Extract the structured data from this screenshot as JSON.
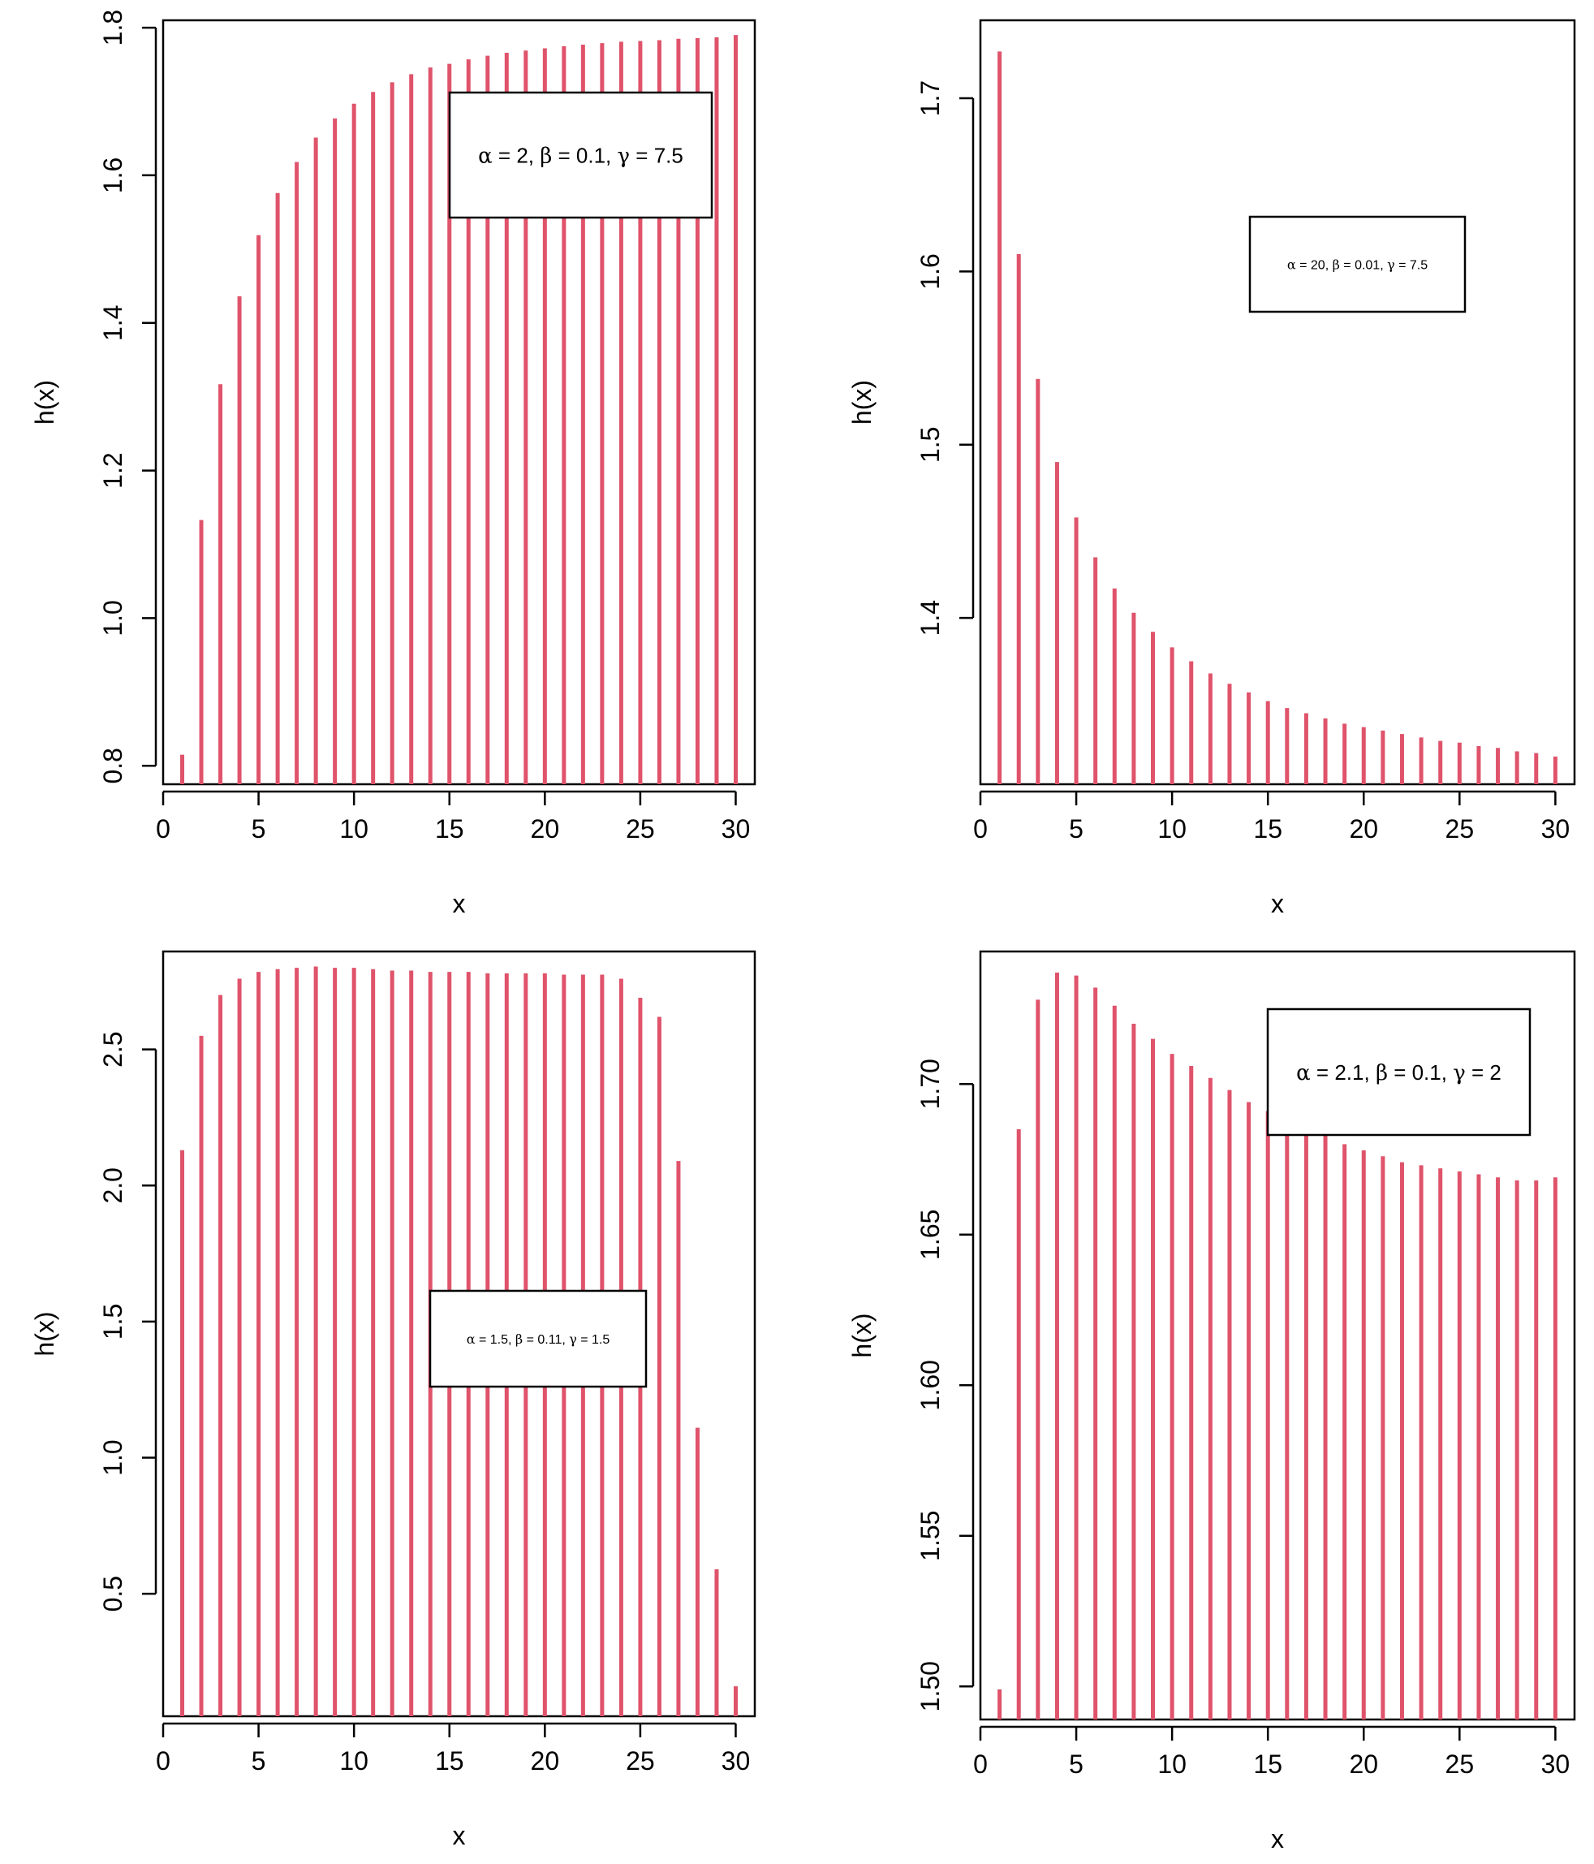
{
  "chart_data": [
    {
      "type": "bar",
      "xlabel": "x",
      "ylabel": "h(x)",
      "xlim": [
        0,
        31
      ],
      "ylim": [
        0.775,
        1.81
      ],
      "xticks": [
        0,
        5,
        10,
        15,
        20,
        25,
        30
      ],
      "yticks": [
        0.8,
        1.0,
        1.2,
        1.4,
        1.6,
        1.8
      ],
      "ytick_labels": [
        "0.8",
        "1.0",
        "1.2",
        "1.4",
        "1.6",
        "1.8"
      ],
      "legend": "α = 2, β = 0.1, γ = 7.5",
      "legend_position": "top-right",
      "color": "#df536b",
      "x": [
        1,
        2,
        3,
        4,
        5,
        6,
        7,
        8,
        9,
        10,
        11,
        12,
        13,
        14,
        15,
        16,
        17,
        18,
        19,
        20,
        21,
        22,
        23,
        24,
        25,
        26,
        27,
        28,
        29,
        30
      ],
      "values": [
        0.815,
        1.133,
        1.317,
        1.436,
        1.519,
        1.576,
        1.618,
        1.651,
        1.677,
        1.697,
        1.713,
        1.726,
        1.737,
        1.746,
        1.751,
        1.757,
        1.762,
        1.766,
        1.769,
        1.772,
        1.775,
        1.777,
        1.779,
        1.781,
        1.782,
        1.783,
        1.785,
        1.786,
        1.787,
        1.79
      ]
    },
    {
      "type": "bar",
      "xlabel": "x",
      "ylabel": "h(x)",
      "xlim": [
        0,
        31
      ],
      "ylim": [
        1.304,
        1.745
      ],
      "xticks": [
        0,
        5,
        10,
        15,
        20,
        25,
        30
      ],
      "yticks": [
        1.4,
        1.5,
        1.6,
        1.7
      ],
      "ytick_labels": [
        "1.4",
        "1.5",
        "1.6",
        "1.7"
      ],
      "legend": "α = 20, β = 0.01, γ = 7.5",
      "legend_position": "top-right",
      "color": "#df536b",
      "x": [
        1,
        2,
        3,
        4,
        5,
        6,
        7,
        8,
        9,
        10,
        11,
        12,
        13,
        14,
        15,
        16,
        17,
        18,
        19,
        20,
        21,
        22,
        23,
        24,
        25,
        26,
        27,
        28,
        29,
        30
      ],
      "values": [
        1.727,
        1.61,
        1.538,
        1.49,
        1.458,
        1.435,
        1.417,
        1.403,
        1.392,
        1.383,
        1.375,
        1.368,
        1.362,
        1.357,
        1.352,
        1.348,
        1.345,
        1.342,
        1.339,
        1.337,
        1.335,
        1.333,
        1.331,
        1.329,
        1.328,
        1.326,
        1.325,
        1.323,
        1.322,
        1.32
      ]
    },
    {
      "type": "bar",
      "xlabel": "x",
      "ylabel": "h(x)",
      "xlim": [
        0,
        31
      ],
      "ylim": [
        0.05,
        2.86
      ],
      "xticks": [
        0,
        5,
        10,
        15,
        20,
        25,
        30
      ],
      "yticks": [
        0.5,
        1.0,
        1.5,
        2.0,
        2.5
      ],
      "ytick_labels": [
        "0.5",
        "1.0",
        "1.5",
        "2.0",
        "2.5"
      ],
      "legend": "α = 1.5, β = 0.11, γ = 1.5",
      "legend_position": "center",
      "color": "#df536b",
      "x": [
        1,
        2,
        3,
        4,
        5,
        6,
        7,
        8,
        9,
        10,
        11,
        12,
        13,
        14,
        15,
        16,
        17,
        18,
        19,
        20,
        21,
        22,
        23,
        24,
        25,
        26,
        27,
        28,
        29,
        30
      ],
      "values": [
        2.13,
        2.55,
        2.7,
        2.76,
        2.785,
        2.795,
        2.8,
        2.805,
        2.8,
        2.8,
        2.795,
        2.79,
        2.79,
        2.785,
        2.785,
        2.785,
        2.78,
        2.78,
        2.78,
        2.78,
        2.775,
        2.775,
        2.775,
        2.76,
        2.69,
        2.62,
        2.09,
        1.11,
        0.59,
        0.16
      ]
    },
    {
      "type": "bar",
      "xlabel": "x",
      "ylabel": "h(x)",
      "xlim": [
        0,
        31
      ],
      "ylim": [
        1.489,
        1.744
      ],
      "xticks": [
        0,
        5,
        10,
        15,
        20,
        25,
        30
      ],
      "yticks": [
        1.5,
        1.55,
        1.6,
        1.65,
        1.7
      ],
      "ytick_labels": [
        "1.50",
        "1.55",
        "1.60",
        "1.65",
        "1.70"
      ],
      "legend": "α = 2.1, β = 0.1, γ = 2",
      "legend_position": "top-right",
      "color": "#df536b",
      "x": [
        1,
        2,
        3,
        4,
        5,
        6,
        7,
        8,
        9,
        10,
        11,
        12,
        13,
        14,
        15,
        16,
        17,
        18,
        19,
        20,
        21,
        22,
        23,
        24,
        25,
        26,
        27,
        28,
        29,
        30
      ],
      "values": [
        1.499,
        1.685,
        1.728,
        1.737,
        1.736,
        1.732,
        1.726,
        1.72,
        1.715,
        1.71,
        1.706,
        1.702,
        1.698,
        1.694,
        1.691,
        1.688,
        1.685,
        1.683,
        1.68,
        1.678,
        1.676,
        1.674,
        1.673,
        1.672,
        1.671,
        1.67,
        1.669,
        1.668,
        1.668,
        1.669
      ]
    }
  ]
}
